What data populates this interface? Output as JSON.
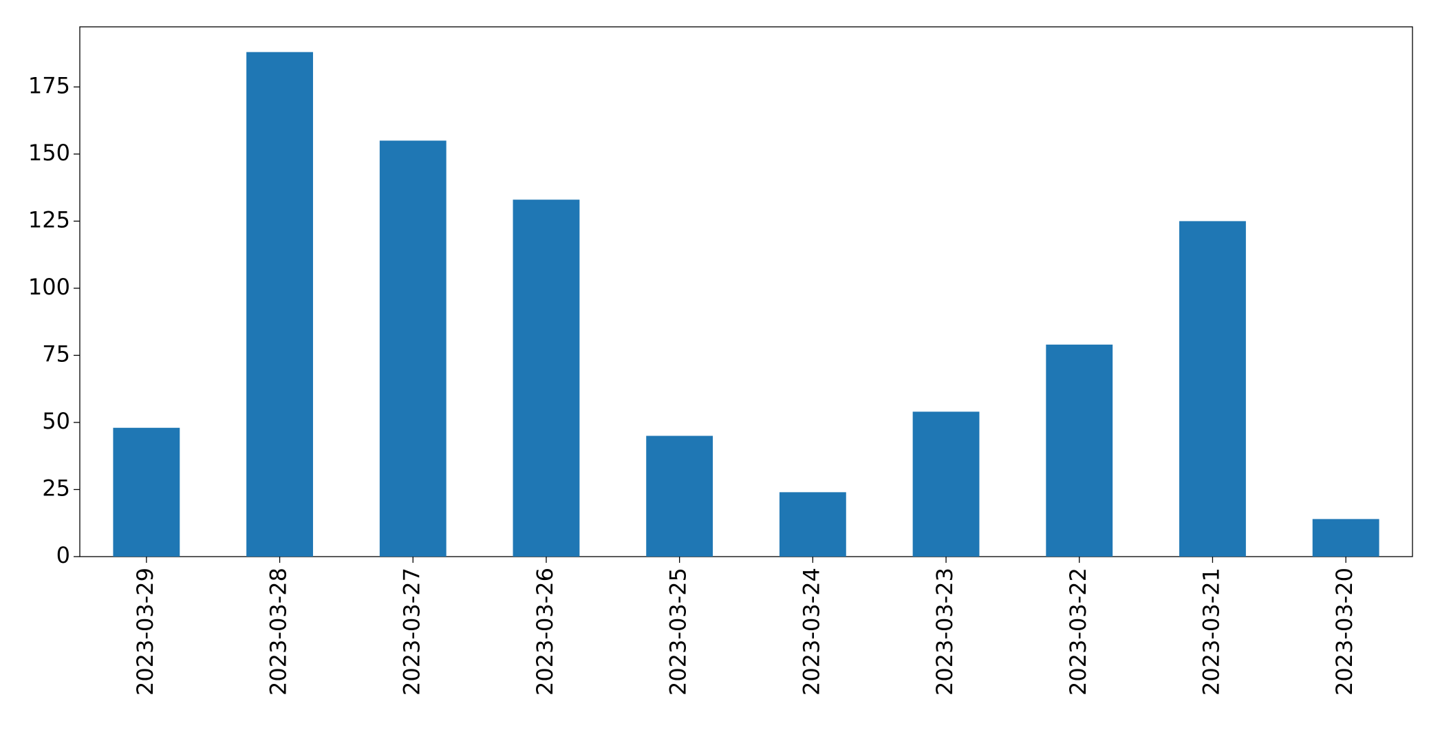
{
  "chart_data": {
    "type": "bar",
    "categories": [
      "2023-03-29",
      "2023-03-28",
      "2023-03-27",
      "2023-03-26",
      "2023-03-25",
      "2023-03-24",
      "2023-03-23",
      "2023-03-22",
      "2023-03-21",
      "2023-03-20"
    ],
    "values": [
      48,
      188,
      155,
      133,
      45,
      24,
      54,
      79,
      125,
      14
    ],
    "color": "#1f77b4",
    "ylim": [
      0,
      197.4
    ],
    "yticks": [
      0,
      25,
      50,
      75,
      100,
      125,
      150,
      175
    ],
    "grid": false
  }
}
